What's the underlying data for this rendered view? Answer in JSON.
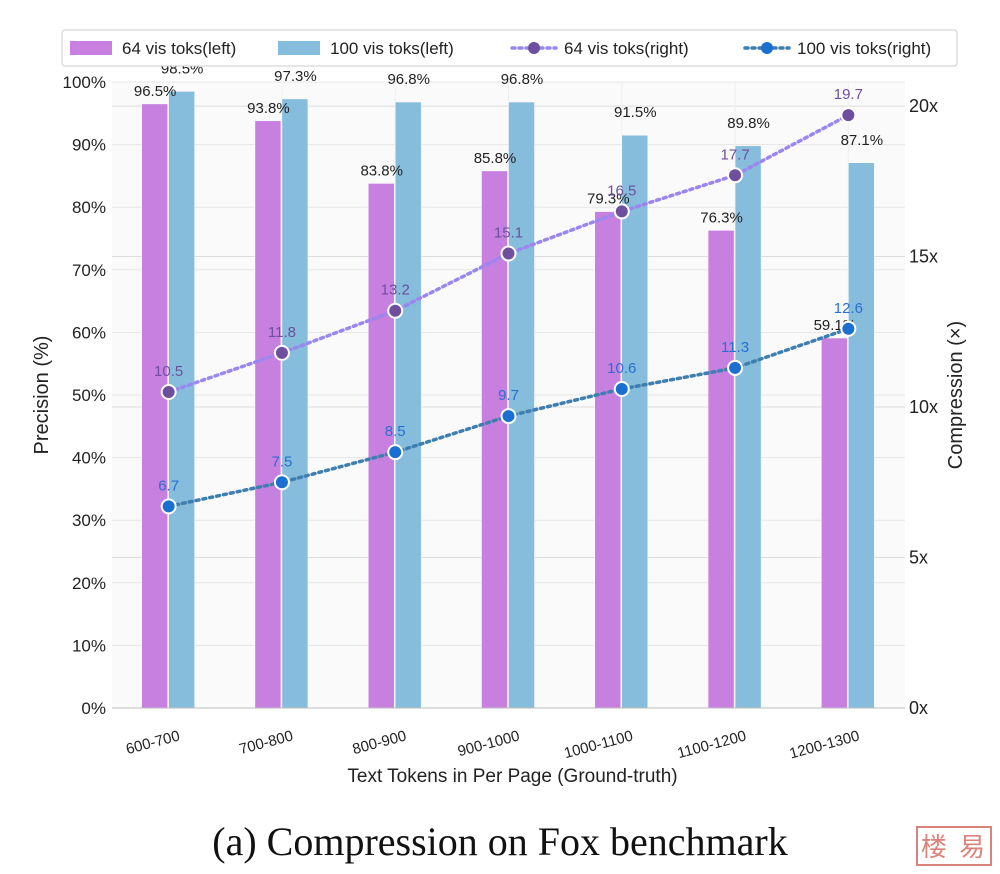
{
  "chart_data": {
    "type": "bar",
    "categories": [
      "600-700",
      "700-800",
      "800-900",
      "900-1000",
      "1000-1100",
      "1100-1200",
      "1200-1300"
    ],
    "xlabel": "Text Tokens in Per Page (Ground-truth)",
    "ylabel": "Precision (%)",
    "y2label": "Compression (×)",
    "ylim": [
      0,
      100
    ],
    "y2lim": [
      0,
      20.8
    ],
    "yticks": [
      "0%",
      "10%",
      "20%",
      "30%",
      "40%",
      "50%",
      "60%",
      "70%",
      "80%",
      "90%",
      "100%"
    ],
    "y2ticks": [
      "0x",
      "5x",
      "10x",
      "15x",
      "20x"
    ],
    "grid": true,
    "legend_position": "top",
    "series": [
      {
        "name": "64 vis toks(left)",
        "kind": "bar",
        "axis": "left",
        "color": "#c77fe0",
        "values": [
          96.5,
          93.8,
          83.8,
          85.8,
          79.3,
          76.3,
          59.1
        ],
        "labels": [
          "96.5%",
          "93.8%",
          "83.8%",
          "85.8%",
          "79.3%",
          "76.3%",
          "59.1%"
        ]
      },
      {
        "name": "100 vis toks(left)",
        "kind": "bar",
        "axis": "left",
        "color": "#86bcdc",
        "values": [
          98.5,
          97.3,
          96.8,
          96.8,
          91.5,
          89.8,
          87.1
        ],
        "labels": [
          "98.5%",
          "97.3%",
          "96.8%",
          "96.8%",
          "91.5%",
          "89.8%",
          "87.1%"
        ]
      },
      {
        "name": "64 vis toks(right)",
        "kind": "line",
        "axis": "right",
        "color": "#9b86f0",
        "marker_color": "#6e4f9e",
        "label_color": "#6e4f9e",
        "values": [
          10.5,
          11.8,
          13.2,
          15.1,
          16.5,
          17.7,
          19.7
        ],
        "labels": [
          "10.5",
          "11.8",
          "13.2",
          "15.1",
          "16.5",
          "17.7",
          "19.7"
        ]
      },
      {
        "name": "100 vis toks(right)",
        "kind": "line",
        "axis": "right",
        "color": "#3f7fb0",
        "marker_color": "#1a6fd0",
        "label_color": "#2a6fd0",
        "values": [
          6.7,
          7.5,
          8.5,
          9.7,
          10.6,
          11.3,
          12.6
        ],
        "labels": [
          "6.7",
          "7.5",
          "8.5",
          "9.7",
          "10.6",
          "11.3",
          "12.6"
        ]
      }
    ]
  },
  "caption": "(a) Compression on Fox benchmark",
  "stamp": "楼 易"
}
